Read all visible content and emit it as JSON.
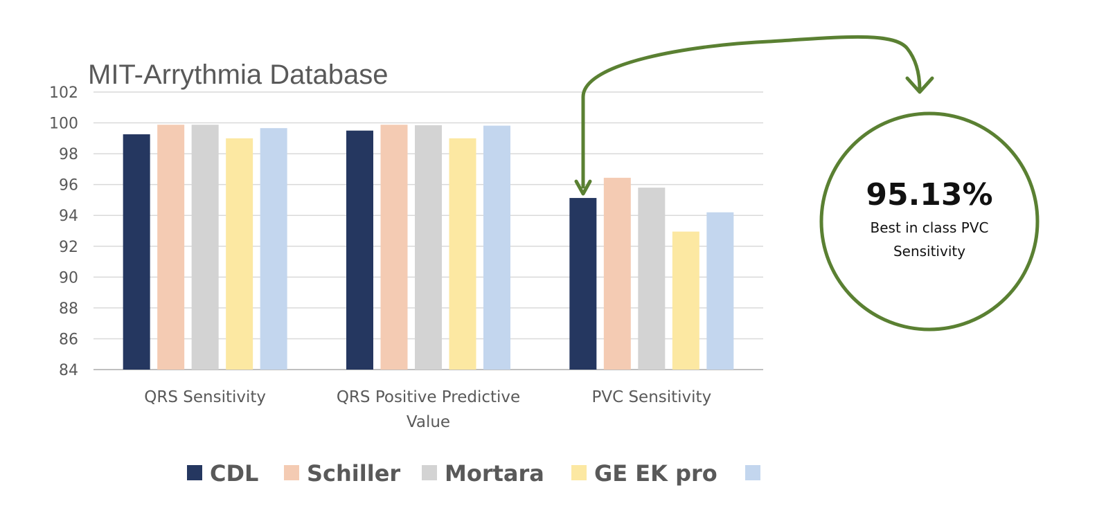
{
  "chart_data": {
    "type": "bar",
    "title": "MIT-Arrythmia Database",
    "xlabel": "",
    "ylabel": "",
    "ylim": [
      84,
      102
    ],
    "ytick_step": 2,
    "grid": true,
    "legend_position": "bottom",
    "categories": [
      [
        "QRS Sensitivity"
      ],
      [
        "QRS Positive Predictive",
        "Value"
      ],
      [
        "PVC Sensitivity"
      ]
    ],
    "series": [
      {
        "name": "CDL",
        "color": "#253760",
        "values": [
          99.26,
          99.5,
          95.13
        ]
      },
      {
        "name": "Schiller",
        "color": "#F4CBB3",
        "values": [
          99.88,
          99.88,
          96.44
        ]
      },
      {
        "name": "Mortara",
        "color": "#D3D3D3",
        "values": [
          99.88,
          99.85,
          95.8
        ]
      },
      {
        "name": "GE EK pro",
        "color": "#FCE8A2",
        "values": [
          99.0,
          99.0,
          92.95
        ]
      },
      {
        "name": "",
        "color": "#C3D6EE",
        "values": [
          99.66,
          99.82,
          94.2
        ]
      }
    ]
  },
  "callout": {
    "value": "95.13%",
    "text_lines": [
      "Best in class PVC",
      "Sensitivity"
    ],
    "arrow_color": "#5A8032"
  }
}
